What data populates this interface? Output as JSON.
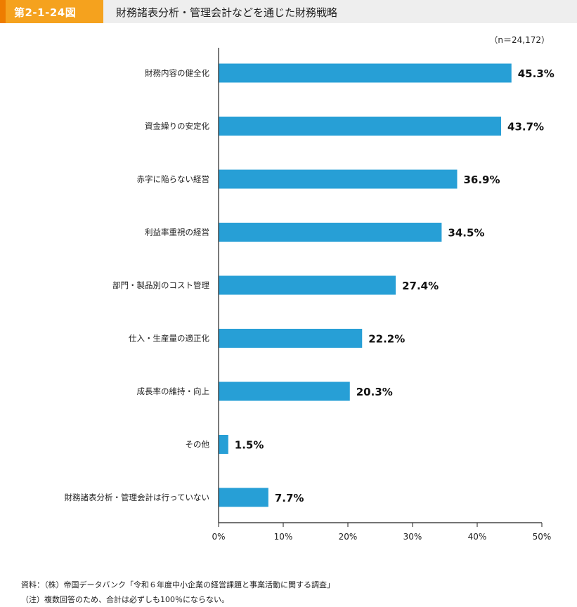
{
  "header": {
    "figure_no": "第2-1-24図",
    "title": "財務諸表分析・管理会計などを通じた財務戦略"
  },
  "colors": {
    "bar": "#279fd6",
    "accent": "#f5a21e",
    "header_bg": "#eeeeee"
  },
  "chart_data": {
    "type": "bar",
    "orientation": "horizontal",
    "sample_note": "（n＝24,172）",
    "categories": [
      "財務内容の健全化",
      "資金繰りの安定化",
      "赤字に陥らない経営",
      "利益率重視の経営",
      "部門・製品別のコスト管理",
      "仕入・生産量の適正化",
      "成長率の維持・向上",
      "その他",
      "財務諸表分析・管理会計は行っていない"
    ],
    "values": [
      45.3,
      43.7,
      36.9,
      34.5,
      27.4,
      22.2,
      20.3,
      1.5,
      7.7
    ],
    "value_labels": [
      "45.3%",
      "43.7%",
      "36.9%",
      "34.5%",
      "27.4%",
      "22.2%",
      "20.3%",
      "1.5%",
      "7.7%"
    ],
    "xlim": [
      0,
      50
    ],
    "xticks": [
      0,
      10,
      20,
      30,
      40,
      50
    ],
    "xtick_labels": [
      "0%",
      "10%",
      "20%",
      "30%",
      "40%",
      "50%"
    ],
    "grid": false
  },
  "notes": {
    "source": "資料：（株）帝国データバンク「令和６年度中小企業の経営課題と事業活動に関する調査」",
    "note": "（注）複数回答のため、合計は必ずしも100％にならない。"
  }
}
